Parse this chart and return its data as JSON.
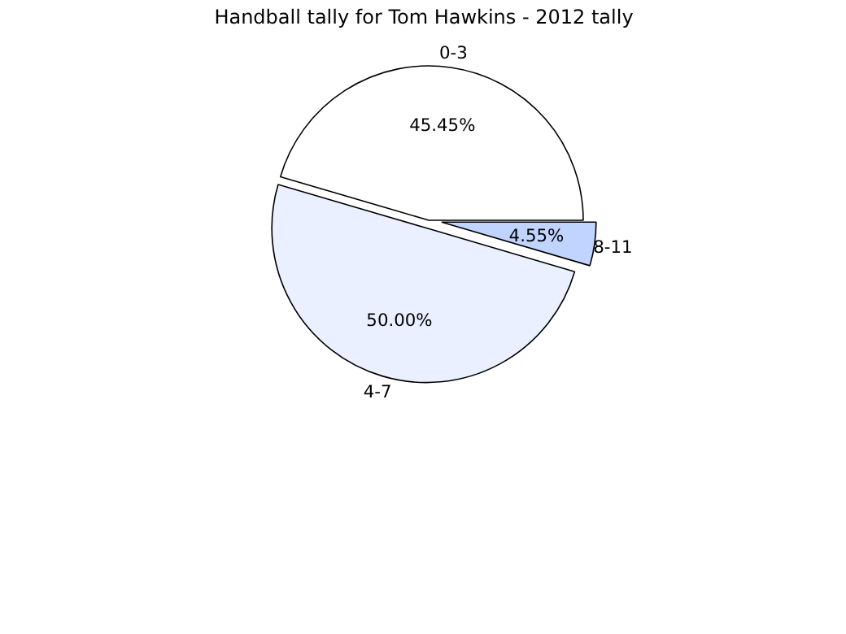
{
  "chart_data": {
    "type": "pie",
    "title": "Handball tally for Tom Hawkins - 2012 tally",
    "categories": [
      "0-3",
      "4-7",
      "8-11"
    ],
    "values": [
      45.45,
      50.0,
      4.55
    ],
    "value_labels": [
      "45.45%",
      "50.00%",
      "4.55%"
    ],
    "colors": [
      "#ffffff",
      "#eaf0ff",
      "#c0d4ff"
    ]
  }
}
